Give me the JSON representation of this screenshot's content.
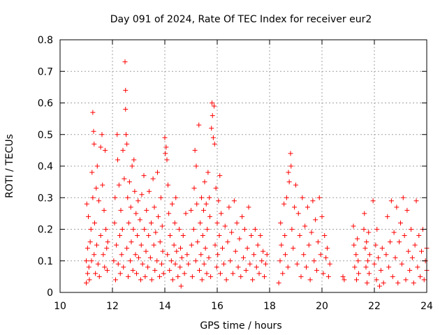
{
  "chart_data": {
    "type": "scatter",
    "title": "Day 091 of 2024, Rate Of TEC Index for receiver eur2",
    "xlabel": "GPS time / hours",
    "ylabel": "ROTI / TECUs",
    "xlim": [
      10,
      24
    ],
    "ylim": [
      0,
      0.8
    ],
    "x_ticks": [
      "10",
      "12",
      "14",
      "16",
      "18",
      "20",
      "22",
      "24"
    ],
    "y_ticks": [
      "0",
      "0.1",
      "0.2",
      "0.3",
      "0.4",
      "0.5",
      "0.6",
      "0.7",
      "0.8"
    ],
    "grid": true,
    "legend": "none",
    "marker": "plus",
    "color": "#ff0000",
    "points": [
      [
        11.0,
        0.03
      ],
      [
        11.0,
        0.1
      ],
      [
        11.02,
        0.28
      ],
      [
        11.05,
        0.14
      ],
      [
        11.05,
        0.06
      ],
      [
        11.08,
        0.24
      ],
      [
        11.1,
        0.08
      ],
      [
        11.12,
        0.04
      ],
      [
        11.15,
        0.16
      ],
      [
        11.18,
        0.2
      ],
      [
        11.2,
        0.1
      ],
      [
        11.22,
        0.38
      ],
      [
        11.25,
        0.57
      ],
      [
        11.25,
        0.3
      ],
      [
        11.28,
        0.51
      ],
      [
        11.3,
        0.47
      ],
      [
        11.3,
        0.12
      ],
      [
        11.32,
        0.22
      ],
      [
        11.35,
        0.06
      ],
      [
        11.38,
        0.33
      ],
      [
        11.4,
        0.15
      ],
      [
        11.42,
        0.4
      ],
      [
        11.45,
        0.09
      ],
      [
        11.48,
        0.29
      ],
      [
        11.5,
        0.05
      ],
      [
        11.55,
        0.46
      ],
      [
        11.55,
        0.18
      ],
      [
        11.6,
        0.5
      ],
      [
        11.62,
        0.34
      ],
      [
        11.65,
        0.12
      ],
      [
        11.68,
        0.26
      ],
      [
        11.7,
        0.08
      ],
      [
        11.72,
        0.45
      ],
      [
        11.75,
        0.2
      ],
      [
        11.78,
        0.14
      ],
      [
        11.8,
        0.07
      ],
      [
        11.82,
        0.16
      ],
      [
        12.05,
        0.1
      ],
      [
        12.08,
        0.22
      ],
      [
        12.1,
        0.3
      ],
      [
        12.12,
        0.04
      ],
      [
        12.15,
        0.15
      ],
      [
        12.18,
        0.5
      ],
      [
        12.2,
        0.42
      ],
      [
        12.22,
        0.09
      ],
      [
        12.25,
        0.34
      ],
      [
        12.28,
        0.18
      ],
      [
        12.3,
        0.06
      ],
      [
        12.32,
        0.26
      ],
      [
        12.35,
        0.12
      ],
      [
        12.38,
        0.2
      ],
      [
        12.4,
        0.45
      ],
      [
        12.42,
        0.08
      ],
      [
        12.45,
        0.36
      ],
      [
        12.48,
        0.73
      ],
      [
        12.5,
        0.64
      ],
      [
        12.5,
        0.58
      ],
      [
        12.52,
        0.5
      ],
      [
        12.55,
        0.47
      ],
      [
        12.55,
        0.14
      ],
      [
        12.58,
        0.3
      ],
      [
        12.6,
        0.05
      ],
      [
        12.62,
        0.22
      ],
      [
        12.65,
        0.35
      ],
      [
        12.68,
        0.1
      ],
      [
        12.7,
        0.27
      ],
      [
        12.72,
        0.16
      ],
      [
        12.75,
        0.4
      ],
      [
        12.78,
        0.07
      ],
      [
        12.8,
        0.2
      ],
      [
        12.82,
        0.42
      ],
      [
        12.85,
        0.32
      ],
      [
        12.88,
        0.12
      ],
      [
        12.9,
        0.25
      ],
      [
        12.92,
        0.06
      ],
      [
        12.95,
        0.18
      ],
      [
        12.98,
        0.29
      ],
      [
        13.0,
        0.11
      ],
      [
        13.05,
        0.23
      ],
      [
        13.08,
        0.04
      ],
      [
        13.1,
        0.15
      ],
      [
        13.12,
        0.31
      ],
      [
        13.15,
        0.09
      ],
      [
        13.2,
        0.37
      ],
      [
        13.22,
        0.2
      ],
      [
        13.25,
        0.05
      ],
      [
        13.28,
        0.13
      ],
      [
        13.3,
        0.26
      ],
      [
        13.35,
        0.08
      ],
      [
        13.38,
        0.18
      ],
      [
        13.4,
        0.32
      ],
      [
        13.45,
        0.11
      ],
      [
        13.48,
        0.22
      ],
      [
        13.5,
        0.04
      ],
      [
        13.55,
        0.36
      ],
      [
        13.58,
        0.15
      ],
      [
        13.6,
        0.27
      ],
      [
        13.62,
        0.07
      ],
      [
        13.65,
        0.19
      ],
      [
        13.7,
        0.1
      ],
      [
        13.72,
        0.38
      ],
      [
        13.75,
        0.24
      ],
      [
        13.8,
        0.05
      ],
      [
        13.82,
        0.16
      ],
      [
        13.85,
        0.3
      ],
      [
        13.88,
        0.09
      ],
      [
        13.9,
        0.21
      ],
      [
        13.92,
        0.13
      ],
      [
        13.95,
        0.06
      ],
      [
        14.0,
        0.49
      ],
      [
        14.02,
        0.44
      ],
      [
        14.05,
        0.46
      ],
      [
        14.08,
        0.42
      ],
      [
        14.1,
        0.12
      ],
      [
        14.12,
        0.34
      ],
      [
        14.15,
        0.25
      ],
      [
        14.18,
        0.07
      ],
      [
        14.2,
        0.18
      ],
      [
        14.25,
        0.1
      ],
      [
        14.28,
        0.28
      ],
      [
        14.3,
        0.04
      ],
      [
        14.35,
        0.15
      ],
      [
        14.38,
        0.22
      ],
      [
        14.4,
        0.09
      ],
      [
        14.42,
        0.3
      ],
      [
        14.45,
        0.13
      ],
      [
        14.5,
        0.05
      ],
      [
        14.55,
        0.2
      ],
      [
        14.58,
        0.08
      ],
      [
        14.6,
        0.14
      ],
      [
        14.62,
        0.02
      ],
      [
        14.65,
        0.11
      ],
      [
        14.7,
        0.18
      ],
      [
        14.75,
        0.06
      ],
      [
        14.8,
        0.25
      ],
      [
        14.85,
        0.12
      ],
      [
        14.9,
        0.09
      ],
      [
        15.0,
        0.26
      ],
      [
        15.02,
        0.15
      ],
      [
        15.05,
        0.05
      ],
      [
        15.1,
        0.2
      ],
      [
        15.12,
        0.33
      ],
      [
        15.15,
        0.45
      ],
      [
        15.18,
        0.1
      ],
      [
        15.2,
        0.4
      ],
      [
        15.22,
        0.28
      ],
      [
        15.25,
        0.16
      ],
      [
        15.3,
        0.53
      ],
      [
        15.32,
        0.07
      ],
      [
        15.35,
        0.22
      ],
      [
        15.38,
        0.12
      ],
      [
        15.4,
        0.3
      ],
      [
        15.42,
        0.04
      ],
      [
        15.45,
        0.18
      ],
      [
        15.48,
        0.26
      ],
      [
        15.5,
        0.09
      ],
      [
        15.52,
        0.35
      ],
      [
        15.55,
        0.14
      ],
      [
        15.58,
        0.28
      ],
      [
        15.6,
        0.06
      ],
      [
        15.62,
        0.2
      ],
      [
        15.65,
        0.38
      ],
      [
        15.68,
        0.11
      ],
      [
        15.7,
        0.3
      ],
      [
        15.72,
        0.24
      ],
      [
        15.75,
        0.05
      ],
      [
        15.78,
        0.52
      ],
      [
        15.8,
        0.6
      ],
      [
        15.82,
        0.56
      ],
      [
        15.85,
        0.49
      ],
      [
        15.88,
        0.59
      ],
      [
        15.9,
        0.47
      ],
      [
        15.92,
        0.15
      ],
      [
        15.95,
        0.33
      ],
      [
        15.98,
        0.08
      ],
      [
        16.0,
        0.22
      ],
      [
        16.02,
        0.12
      ],
      [
        16.05,
        0.29
      ],
      [
        16.08,
        0.18
      ],
      [
        16.1,
        0.37
      ],
      [
        16.12,
        0.06
      ],
      [
        16.15,
        0.25
      ],
      [
        16.2,
        0.14
      ],
      [
        16.25,
        0.09
      ],
      [
        16.3,
        0.21
      ],
      [
        16.35,
        0.04
      ],
      [
        16.4,
        0.16
      ],
      [
        16.45,
        0.27
      ],
      [
        16.5,
        0.1
      ],
      [
        16.55,
        0.19
      ],
      [
        16.6,
        0.06
      ],
      [
        16.65,
        0.29
      ],
      [
        16.7,
        0.13
      ],
      [
        16.75,
        0.22
      ],
      [
        16.8,
        0.08
      ],
      [
        16.85,
        0.17
      ],
      [
        16.9,
        0.05
      ],
      [
        16.95,
        0.24
      ],
      [
        17.0,
        0.11
      ],
      [
        17.05,
        0.2
      ],
      [
        17.1,
        0.07
      ],
      [
        17.15,
        0.14
      ],
      [
        17.2,
        0.27
      ],
      [
        17.25,
        0.09
      ],
      [
        17.3,
        0.18
      ],
      [
        17.35,
        0.04
      ],
      [
        17.4,
        0.12
      ],
      [
        17.45,
        0.2
      ],
      [
        17.5,
        0.08
      ],
      [
        17.55,
        0.15
      ],
      [
        17.6,
        0.06
      ],
      [
        17.65,
        0.18
      ],
      [
        17.7,
        0.1
      ],
      [
        17.75,
        0.13
      ],
      [
        17.8,
        0.05
      ],
      [
        17.85,
        0.09
      ],
      [
        17.9,
        0.12
      ],
      [
        18.35,
        0.03
      ],
      [
        18.4,
        0.1
      ],
      [
        18.42,
        0.22
      ],
      [
        18.45,
        0.15
      ],
      [
        18.5,
        0.06
      ],
      [
        18.55,
        0.28
      ],
      [
        18.58,
        0.18
      ],
      [
        18.6,
        0.12
      ],
      [
        18.65,
        0.3
      ],
      [
        18.7,
        0.08
      ],
      [
        18.72,
        0.38
      ],
      [
        18.75,
        0.35
      ],
      [
        18.8,
        0.44
      ],
      [
        18.82,
        0.4
      ],
      [
        18.85,
        0.2
      ],
      [
        18.9,
        0.14
      ],
      [
        18.95,
        0.27
      ],
      [
        19.0,
        0.34
      ],
      [
        19.05,
        0.09
      ],
      [
        19.1,
        0.25
      ],
      [
        19.15,
        0.18
      ],
      [
        19.2,
        0.05
      ],
      [
        19.25,
        0.3
      ],
      [
        19.3,
        0.12
      ],
      [
        19.35,
        0.21
      ],
      [
        19.4,
        0.08
      ],
      [
        19.45,
        0.27
      ],
      [
        19.5,
        0.15
      ],
      [
        19.55,
        0.04
      ],
      [
        19.6,
        0.19
      ],
      [
        19.65,
        0.29
      ],
      [
        19.7,
        0.1
      ],
      [
        19.75,
        0.23
      ],
      [
        19.8,
        0.07
      ],
      [
        19.85,
        0.16
      ],
      [
        19.9,
        0.3
      ],
      [
        19.95,
        0.12
      ],
      [
        20.0,
        0.24
      ],
      [
        20.05,
        0.06
      ],
      [
        20.1,
        0.18
      ],
      [
        20.15,
        0.11
      ],
      [
        20.2,
        0.14
      ],
      [
        20.25,
        0.05
      ],
      [
        20.3,
        0.09
      ],
      [
        20.8,
        0.05
      ],
      [
        20.85,
        0.04
      ],
      [
        21.2,
        0.21
      ],
      [
        21.22,
        0.15
      ],
      [
        21.25,
        0.08
      ],
      [
        21.3,
        0.12
      ],
      [
        21.32,
        0.04
      ],
      [
        21.35,
        0.17
      ],
      [
        21.38,
        0.1
      ],
      [
        21.4,
        0.06
      ],
      [
        21.6,
        0.2
      ],
      [
        21.62,
        0.25
      ],
      [
        21.65,
        0.14
      ],
      [
        21.68,
        0.08
      ],
      [
        21.7,
        0.16
      ],
      [
        21.72,
        0.03
      ],
      [
        21.75,
        0.1
      ],
      [
        21.78,
        0.19
      ],
      [
        21.8,
        0.06
      ],
      [
        21.82,
        0.12
      ],
      [
        21.95,
        0.29
      ],
      [
        22.0,
        0.09
      ],
      [
        22.05,
        0.15
      ],
      [
        22.08,
        0.04
      ],
      [
        22.1,
        0.2
      ],
      [
        22.15,
        0.11
      ],
      [
        22.2,
        0.02
      ],
      [
        22.25,
        0.07
      ],
      [
        22.3,
        0.14
      ],
      [
        22.35,
        0.03
      ],
      [
        22.45,
        0.12
      ],
      [
        22.5,
        0.24
      ],
      [
        22.55,
        0.08
      ],
      [
        22.6,
        0.16
      ],
      [
        22.65,
        0.29
      ],
      [
        22.7,
        0.05
      ],
      [
        22.75,
        0.19
      ],
      [
        22.8,
        0.11
      ],
      [
        22.85,
        0.27
      ],
      [
        22.9,
        0.03
      ],
      [
        22.95,
        0.16
      ],
      [
        23.0,
        0.22
      ],
      [
        23.05,
        0.09
      ],
      [
        23.1,
        0.3
      ],
      [
        23.15,
        0.18
      ],
      [
        23.2,
        0.04
      ],
      [
        23.25,
        0.26
      ],
      [
        23.3,
        0.13
      ],
      [
        23.35,
        0.07
      ],
      [
        23.4,
        0.2
      ],
      [
        23.45,
        0.11
      ],
      [
        23.5,
        0.03
      ],
      [
        23.55,
        0.15
      ],
      [
        23.6,
        0.29
      ],
      [
        23.65,
        0.08
      ],
      [
        23.7,
        0.18
      ],
      [
        23.75,
        0.05
      ],
      [
        23.8,
        0.13
      ],
      [
        23.85,
        0.2
      ],
      [
        23.9,
        0.04
      ],
      [
        23.95,
        0.1
      ],
      [
        24.0,
        0.07
      ],
      [
        24.0,
        0.14
      ]
    ]
  }
}
